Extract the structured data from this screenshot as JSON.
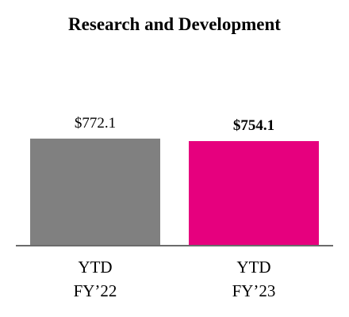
{
  "chart_data": {
    "type": "bar",
    "title": "Research and Development",
    "categories": [
      "YTD\nFY’22",
      "YTD\nFY’23"
    ],
    "values": [
      772.1,
      754.1
    ],
    "value_labels": [
      "$772.1",
      "$754.1"
    ],
    "bold_labels": [
      false,
      true
    ],
    "colors": [
      "#808080",
      "#e6007e"
    ],
    "ylim": [
      0,
      880
    ]
  }
}
